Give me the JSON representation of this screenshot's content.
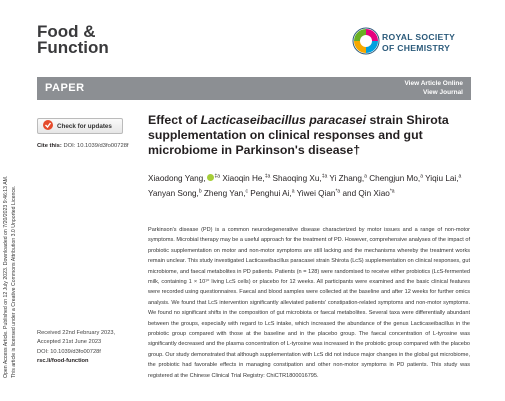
{
  "margin": {
    "line1": "Open Access Article. Published on 12 July 2023. Downloaded on 7/20/2023 9:46:13 AM.",
    "line2": "This article is licensed under a Creative Commons Attribution 3.0 Unported Licence."
  },
  "header": {
    "journal_line1": "Food &",
    "journal_line2": "Function",
    "publisher_line1": "ROYAL SOCIETY",
    "publisher_line2": "OF CHEMISTRY"
  },
  "banner": {
    "label": "PAPER",
    "view_article": "View Article Online",
    "view_journal": "View Journal"
  },
  "check_updates": "Check for updates",
  "cite": {
    "label": "Cite this:",
    "doi": "DOI: 10.1039/d3fo00728f"
  },
  "title": {
    "before": "Effect of ",
    "italic": "Lacticaseibacillus paracasei",
    "after": " strain Shirota supplementation on clinical responses and gut microbiome in Parkinson's disease†"
  },
  "authors": [
    {
      "name": "Xiaodong Yang,",
      "sup": "‡a"
    },
    {
      "name": "Xiaoqin He,",
      "sup": "‡a"
    },
    {
      "name": "Shaoqing Xu,",
      "sup": "‡a"
    },
    {
      "name": "Yi Zhang,",
      "sup": "a"
    },
    {
      "name": "Chengjun Mo,",
      "sup": "a"
    },
    {
      "name": "Yiqiu Lai,",
      "sup": "a"
    },
    {
      "name": "Yanyan Song,",
      "sup": "b"
    },
    {
      "name": "Zheng Yan,",
      "sup": "c"
    },
    {
      "name": "Penghui Ai,",
      "sup": "a"
    },
    {
      "name": "Yiwei Qian",
      "sup": "*a"
    },
    {
      "name": "and Qin Xiao",
      "sup": "*a"
    }
  ],
  "abstract": "Parkinson's disease (PD) is a common neurodegenerative disease characterized by motor issues and a range of non-motor symptoms. Microbial therapy may be a useful approach for the treatment of PD. However, comprehensive analyses of the impact of probiotic supplementation on motor and non-motor symptoms are still lacking and the mechanisms whereby the treatment works remain unclear. This study investigated Lacticaseibacillus paracasei strain Shirota (LcS) supplementation on clinical responses, gut microbiome, and faecal metabolites in PD patients. Patients (n = 128) were randomised to receive either probiotics (LcS-fermented milk, containing 1 × 10¹⁰ living LcS cells) or placebo for 12 weeks. All participants were examined and the basic clinical features were recorded using questionnaires. Faecal and blood samples were collected at the baseline and after 12 weeks for further omics analysis. We found that LcS intervention significantly alleviated patients' constipation-related symptoms and non-motor symptoms. We found no significant shifts in the composition of gut microbiota or faecal metabolites. Several taxa were differentially abundant between the groups, especially with regard to LcS intake, which increased the abundance of the genus Lacticaseibacillus in the probiotic group compared with those at the baseline and in the placebo group. The faecal concentration of L-tyrosine was significantly decreased and the plasma concentration of L-tyrosine was increased in the probiotic group compared with the placebo group. Our study demonstrated that although supplementation with LcS did not induce major changes in the global gut microbiome, the probiotic had favorable effects in managing constipation and other non-motor symptoms in PD patients. This study was registered at the Chinese Clinical Trial Registry: ChiCTR1800016795.",
  "dates": {
    "received": "Received 22nd February 2023,",
    "accepted": "Accepted 21st June 2023",
    "doi": "DOI: 10.1039/d3fo00728f",
    "url": "rsc.li/food-function"
  }
}
